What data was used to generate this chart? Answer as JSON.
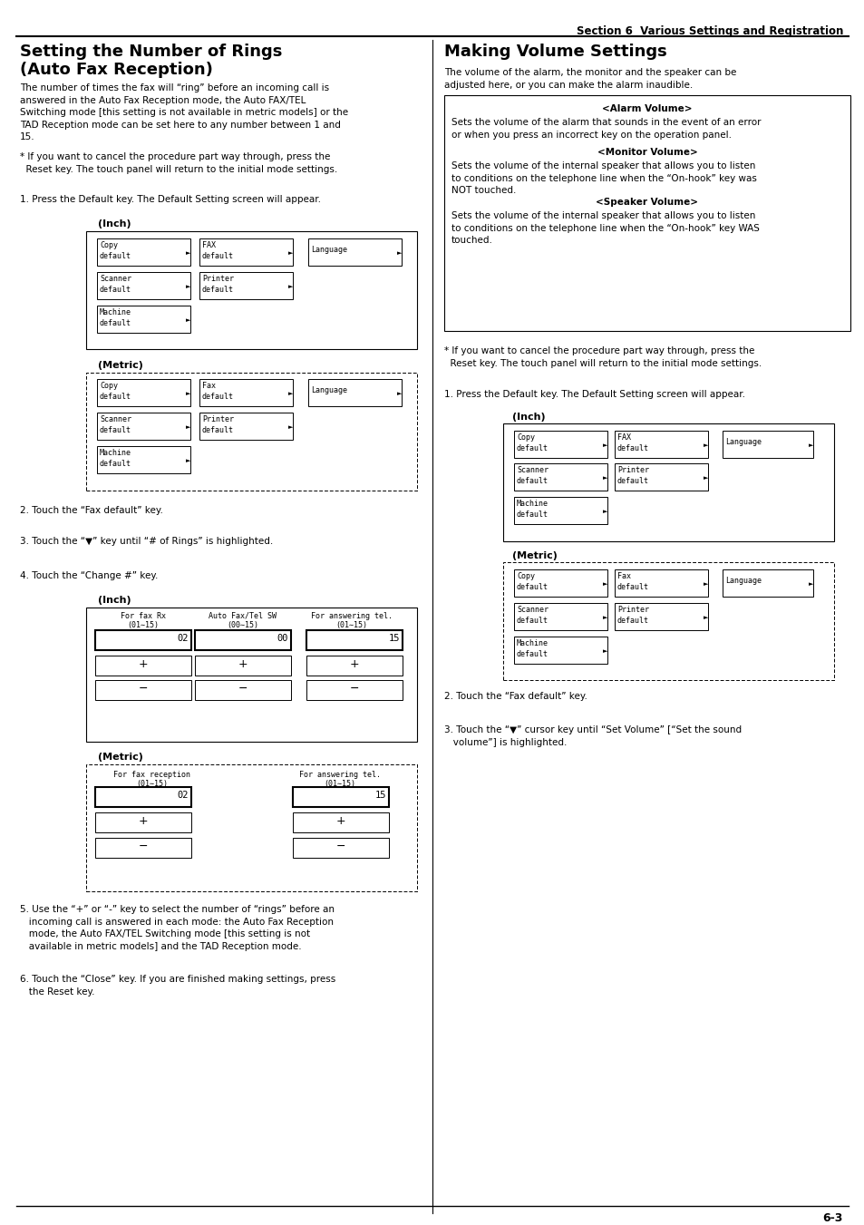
{
  "page_title": "Section 6  Various Settings and Registration",
  "bg_color": "#ffffff",
  "page_num": "6-3",
  "left_title1": "Setting the Number of Rings",
  "left_title2": "(Auto Fax Reception)",
  "right_title": "Making Volume Settings",
  "left_body": "The number of times the fax will “ring” before an incoming call is\nanswered in the Auto Fax Reception mode, the Auto FAX/TEL\nSwitching mode [this setting is not available in metric models] or the\nTAD Reception mode can be set here to any number between 1 and\n15.",
  "left_note": "* If you want to cancel the procedure part way through, press the\n  Reset key. The touch panel will return to the initial mode settings.",
  "right_body": "The volume of the alarm, the monitor and the speaker can be\nadjusted here, or you can make the alarm inaudible.",
  "alarm_title": "<Alarm Volume>",
  "alarm_body": "Sets the volume of the alarm that sounds in the event of an error\nor when you press an incorrect key on the operation panel.",
  "monitor_title": "<Monitor Volume>",
  "monitor_body": "Sets the volume of the internal speaker that allows you to listen\nto conditions on the telephone line when the “On-hook” key was\nNOT touched.",
  "speaker_title": "<Speaker Volume>",
  "speaker_body": "Sets the volume of the internal speaker that allows you to listen\nto conditions on the telephone line when the “On-hook” key WAS\ntouched.",
  "right_note": "* If you want to cancel the procedure part way through, press the\n  Reset key. The touch panel will return to the initial mode settings.",
  "step1_left": "1. Press the Default key. The Default Setting screen will appear.",
  "step2_left": "2. Touch the “Fax default” key.",
  "step3_left": "3. Touch the “▼” key until “# of Rings” is highlighted.",
  "step4_left": "4. Touch the “Change #” key.",
  "step5_left": "5. Use the “+” or “-” key to select the number of “rings” before an\n   incoming call is answered in each mode: the Auto Fax Reception\n   mode, the Auto FAX/TEL Switching mode [this setting is not\n   available in metric models] and the TAD Reception mode.",
  "step6_left": "6. Touch the “Close” key. If you are finished making settings, press\n   the Reset key.",
  "step1_right": "1. Press the Default key. The Default Setting screen will appear.",
  "step2_right": "2. Touch the “Fax default” key.",
  "step3_right": "3. Touch the “▼” cursor key until “Set Volume” [“Set the sound\n   volume”] is highlighted."
}
